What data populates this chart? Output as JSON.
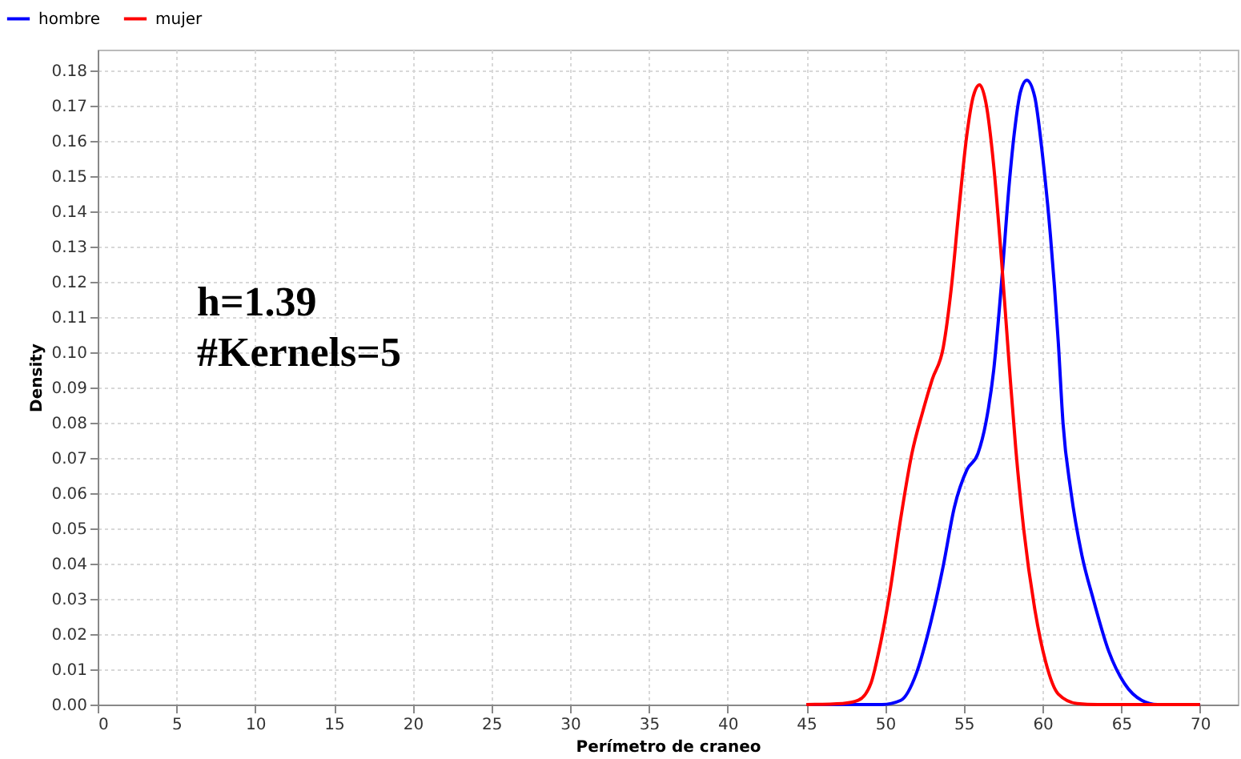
{
  "chart_data": {
    "type": "line",
    "xlabel": "Perímetro de craneo",
    "ylabel": "Density",
    "annotations": [
      "h=1.39",
      "#Kernels=5"
    ],
    "xlim": [
      0,
      72.4
    ],
    "ylim": [
      0,
      0.186
    ],
    "xticks": [
      0,
      5,
      10,
      15,
      20,
      25,
      30,
      35,
      40,
      45,
      50,
      55,
      60,
      65,
      70
    ],
    "yticks": [
      {
        "value": 0,
        "label": "0.00"
      },
      {
        "value": 0.01,
        "label": "0.01"
      },
      {
        "value": 0.02,
        "label": "0.02"
      },
      {
        "value": 0.03,
        "label": "0.03"
      },
      {
        "value": 0.04,
        "label": "0.04"
      },
      {
        "value": 0.05,
        "label": "0.05"
      },
      {
        "value": 0.06,
        "label": "0.06"
      },
      {
        "value": 0.07,
        "label": "0.07"
      },
      {
        "value": 0.08,
        "label": "0.08"
      },
      {
        "value": 0.09,
        "label": "0.09"
      },
      {
        "value": 0.1,
        "label": "0.10"
      },
      {
        "value": 0.11,
        "label": "0.11"
      },
      {
        "value": 0.12,
        "label": "0.12"
      },
      {
        "value": 0.13,
        "label": "0.13"
      },
      {
        "value": 0.14,
        "label": "0.14"
      },
      {
        "value": 0.15,
        "label": "0.15"
      },
      {
        "value": 0.16,
        "label": "0.16"
      },
      {
        "value": 0.17,
        "label": "0.17"
      },
      {
        "value": 0.18,
        "label": "0.18"
      }
    ],
    "grid": true,
    "legend": "top left",
    "series": [
      {
        "name": "hombre",
        "color": "#0000ff",
        "x": [
          45,
          49.8,
          51.0,
          52.0,
          52.7,
          53.7,
          54.4,
          55.2,
          55.9,
          56.4,
          56.9,
          57.4,
          57.9,
          58.2,
          58.6,
          59.0,
          59.5,
          60.0,
          60.5,
          61.0,
          61.3,
          61.8,
          62.5,
          63.2,
          64.2,
          65.2,
          66.3,
          67.3,
          70
        ],
        "values": [
          0,
          0,
          0.0012,
          0.009,
          0.0197,
          0.0395,
          0.056,
          0.0667,
          0.0713,
          0.08,
          0.095,
          0.12,
          0.1486,
          0.162,
          0.174,
          0.1773,
          0.1727,
          0.156,
          0.1333,
          0.103,
          0.08,
          0.0606,
          0.0424,
          0.0303,
          0.0152,
          0.006,
          0.0012,
          0,
          0
        ]
      },
      {
        "name": "mujer",
        "color": "#ff0000",
        "x": [
          45,
          47.3,
          48.3,
          49.1,
          49.6,
          50.3,
          51.0,
          51.7,
          52.4,
          53.0,
          53.7,
          54.2,
          54.7,
          55.2,
          55.6,
          56.0,
          56.4,
          56.9,
          57.4,
          57.9,
          58.3,
          58.8,
          59.5,
          60.2,
          61.0,
          62.2,
          63.5,
          70
        ],
        "values": [
          0,
          0.0003,
          0.0012,
          0.006,
          0.015,
          0.0318,
          0.053,
          0.0712,
          0.0833,
          0.0924,
          0.1015,
          0.118,
          0.141,
          0.162,
          0.1727,
          0.176,
          0.171,
          0.153,
          0.126,
          0.0955,
          0.0727,
          0.05,
          0.0273,
          0.0121,
          0.003,
          0.0003,
          0,
          0
        ]
      }
    ]
  }
}
